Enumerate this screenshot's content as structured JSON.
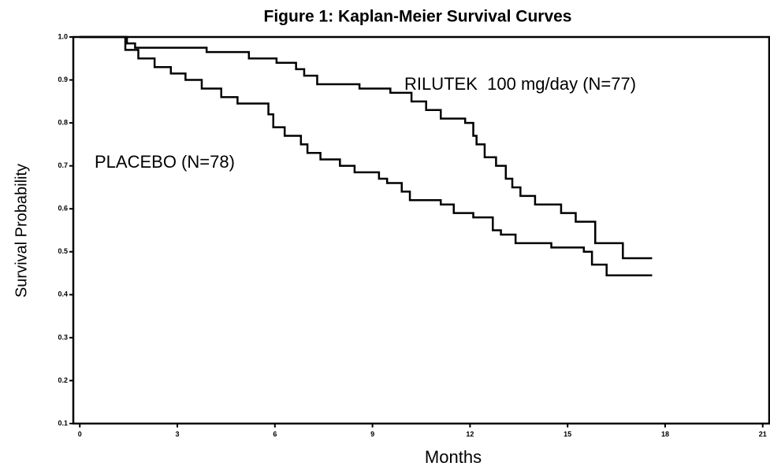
{
  "chart_data": {
    "type": "step",
    "title": "Figure 1:  Kaplan-Meier Survival Curves",
    "x_label": "Months",
    "y_label": "Survival Probability",
    "xlim": [
      -0.2,
      21.2
    ],
    "ylim": [
      0.1,
      1.0
    ],
    "xticks": [
      0,
      3,
      6,
      9,
      12,
      15,
      18,
      21
    ],
    "yticks": [
      {
        "value": 1,
        "label": "1.0"
      },
      0.9,
      0.8,
      0.7,
      0.6,
      0.5,
      0.4,
      0.3,
      0.2,
      0.1
    ],
    "series": [
      {
        "name": "RILUTEK  100 mg/day (N=77)",
        "color": "#000000",
        "x": [
          0,
          1.45,
          1.7,
          3.9,
          5.2,
          6.05,
          6.65,
          6.9,
          7.3,
          8.6,
          9.55,
          10.2,
          10.65,
          11.1,
          11.85,
          12.1,
          12.2,
          12.45,
          12.8,
          13.1,
          13.3,
          13.55,
          14.0,
          14.8,
          15.25,
          15.85,
          16.7,
          17.6
        ],
        "values": [
          1.0,
          0.985,
          0.975,
          0.965,
          0.95,
          0.94,
          0.925,
          0.91,
          0.89,
          0.88,
          0.87,
          0.85,
          0.83,
          0.81,
          0.8,
          0.77,
          0.75,
          0.72,
          0.7,
          0.67,
          0.65,
          0.63,
          0.61,
          0.59,
          0.57,
          0.52,
          0.485,
          0.485
        ]
      },
      {
        "name": "PLACEBO (N=78)",
        "color": "#000000",
        "x": [
          0,
          1.4,
          1.8,
          2.3,
          2.8,
          3.25,
          3.75,
          4.35,
          4.85,
          5.8,
          5.95,
          6.3,
          6.8,
          7.0,
          7.4,
          8.0,
          8.45,
          9.2,
          9.45,
          9.9,
          10.15,
          11.1,
          11.5,
          12.1,
          12.7,
          12.95,
          13.4,
          14.5,
          15.5,
          15.75,
          16.2,
          17.6
        ],
        "values": [
          1.0,
          0.97,
          0.95,
          0.93,
          0.915,
          0.9,
          0.88,
          0.86,
          0.845,
          0.82,
          0.79,
          0.77,
          0.75,
          0.73,
          0.715,
          0.7,
          0.685,
          0.67,
          0.66,
          0.64,
          0.62,
          0.61,
          0.59,
          0.58,
          0.55,
          0.54,
          0.52,
          0.51,
          0.5,
          0.47,
          0.445,
          0.445
        ]
      }
    ]
  }
}
